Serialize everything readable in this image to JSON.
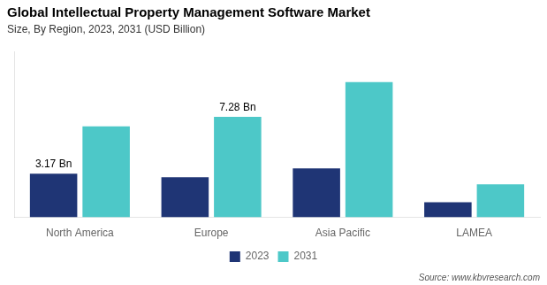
{
  "chart_data": {
    "type": "bar",
    "title": "Global Intellectual Property Management Software Market",
    "subtitle": "Size, By Region, 2023, 2031 (USD Billion)",
    "annotation": "Source: www.kbvresearch.com",
    "categories": [
      "North America",
      "Europe",
      "Asia Pacific",
      "LAMEA"
    ],
    "series": [
      {
        "name": "2023",
        "color": "#1f3575",
        "values": [
          3.17,
          2.9,
          3.55,
          1.1
        ],
        "value_labels": [
          "3.17 Bn",
          null,
          null,
          null
        ]
      },
      {
        "name": "2031",
        "color": "#4dc8c8",
        "values": [
          6.6,
          7.28,
          9.8,
          2.4
        ],
        "value_labels": [
          null,
          "7.28 Bn",
          null,
          null
        ]
      }
    ],
    "ylim": [
      0,
      12
    ],
    "grid": false,
    "legend": "bottom",
    "tick_labels": "x"
  }
}
